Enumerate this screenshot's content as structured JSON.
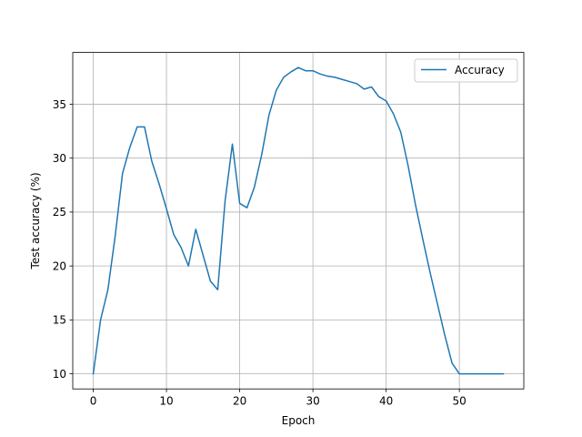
{
  "chart_data": {
    "type": "line",
    "title": "",
    "xlabel": "Epoch",
    "ylabel": "Test accuracy (%)",
    "xlim": [
      -2.8,
      58.8
    ],
    "ylim": [
      8.6,
      39.8
    ],
    "xticks": [
      0,
      10,
      20,
      30,
      40,
      50
    ],
    "yticks": [
      10,
      15,
      20,
      25,
      30,
      35
    ],
    "grid": true,
    "legend_position": "top-right",
    "colors": {
      "series": "#1f77b4",
      "grid": "#b0b0b0",
      "axis": "#000000"
    },
    "series": [
      {
        "name": "Accuracy",
        "x": [
          0,
          1,
          2,
          3,
          4,
          5,
          6,
          7,
          8,
          9,
          10,
          11,
          12,
          13,
          14,
          15,
          16,
          17,
          18,
          19,
          20,
          21,
          22,
          23,
          24,
          25,
          26,
          27,
          28,
          29,
          30,
          31,
          32,
          33,
          34,
          35,
          36,
          37,
          38,
          39,
          40,
          41,
          42,
          43,
          44,
          45,
          46,
          47,
          48,
          49,
          50,
          51,
          52,
          53,
          54,
          55,
          56
        ],
        "values": [
          10.0,
          15.0,
          17.8,
          22.8,
          28.6,
          31.0,
          32.9,
          32.9,
          29.7,
          27.6,
          25.3,
          22.9,
          21.7,
          20.0,
          23.4,
          21.0,
          18.6,
          17.8,
          26.0,
          31.3,
          25.8,
          25.4,
          27.3,
          30.3,
          34.0,
          36.3,
          37.5,
          38.0,
          38.4,
          38.1,
          38.1,
          37.8,
          37.6,
          37.5,
          37.3,
          37.1,
          36.9,
          36.4,
          36.6,
          35.7,
          35.3,
          34.1,
          32.4,
          29.3,
          25.7,
          22.5,
          19.4,
          16.5,
          13.6,
          11.0,
          10.0,
          10.0,
          10.0,
          10.0,
          10.0,
          10.0,
          10.0
        ]
      }
    ]
  }
}
